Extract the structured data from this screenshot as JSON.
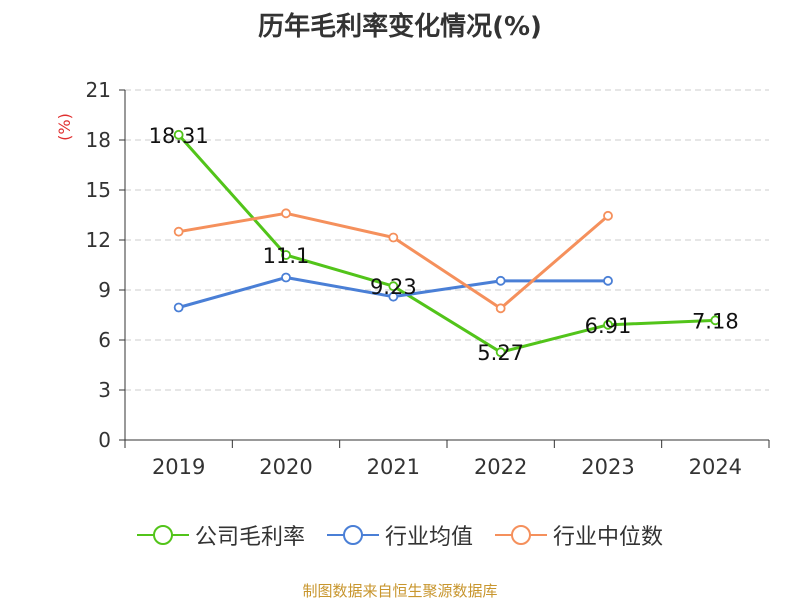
{
  "title": "历年毛利率变化情况(%)",
  "footer": "制图数据来自恒生聚源数据库",
  "chart_data": {
    "type": "line",
    "title": "历年毛利率变化情况(%)",
    "ylabel": "(%)",
    "xlabel": "",
    "categories": [
      "2019",
      "2020",
      "2021",
      "2022",
      "2023",
      "2024"
    ],
    "ylim": [
      0,
      21
    ],
    "yticks": [
      0,
      3,
      6,
      9,
      12,
      15,
      18,
      21
    ],
    "grid": true,
    "legend_position": "bottom",
    "series": [
      {
        "name": "公司毛利率",
        "color": "#52c41a",
        "values": [
          18.31,
          11.1,
          9.23,
          5.27,
          6.91,
          7.18
        ],
        "labels": [
          "18.31",
          "11.1",
          "9.23",
          "5.27",
          "6.91",
          "7.18"
        ]
      },
      {
        "name": "行业均值",
        "color": "#4a7fd6",
        "values": [
          7.95,
          9.75,
          8.6,
          9.55,
          9.55,
          null
        ],
        "labels": null
      },
      {
        "name": "行业中位数",
        "color": "#f5905c",
        "values": [
          12.5,
          13.6,
          12.15,
          7.9,
          13.45,
          null
        ],
        "labels": null
      }
    ]
  }
}
